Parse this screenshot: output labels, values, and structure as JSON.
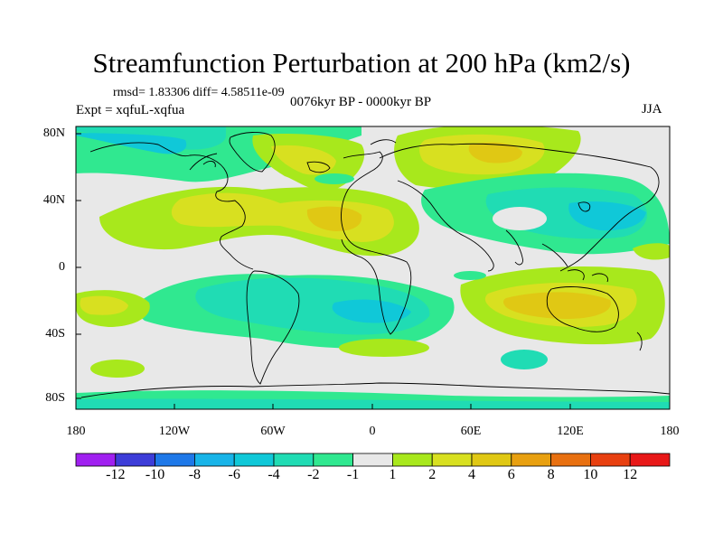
{
  "title": "Streamfunction Perturbation at 200 hPa (km2/s)",
  "stats": "rmsd= 1.83306 diff= 4.58511e-09",
  "experiment": "Expt = xqfuL-xqfua",
  "period": "0076kyr BP - 0000kyr BP",
  "season": "JJA",
  "lat_ticks": [
    "80N",
    "40N",
    "0",
    "40S",
    "80S"
  ],
  "lon_ticks": [
    "180",
    "120W",
    "60W",
    "0",
    "60E",
    "120E",
    "180"
  ],
  "colorbar": {
    "levels": [
      "-12",
      "-10",
      "-8",
      "-6",
      "-4",
      "-2",
      "-1",
      "1",
      "2",
      "4",
      "6",
      "8",
      "10",
      "12"
    ],
    "colors": [
      "#a020f0",
      "#3d3dd8",
      "#1e78e8",
      "#18b4e8",
      "#10c8d8",
      "#20dcb4",
      "#30e890",
      "#e8e8e8",
      "#a8e81c",
      "#d8e020",
      "#e0c814",
      "#e8a010",
      "#e87010",
      "#e84010",
      "#e81818"
    ]
  }
}
